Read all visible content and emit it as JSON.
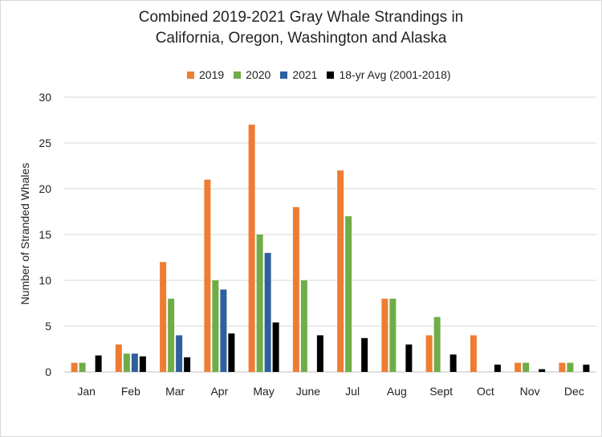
{
  "chart_data": {
    "type": "bar",
    "title_line1": "Combined 2019-2021 Gray Whale Strandings in",
    "title_line2": "California, Oregon, Washington and Alaska",
    "ylabel": "Number of Stranded Whales",
    "xlabel": "",
    "ylim": [
      0,
      30
    ],
    "yticks": [
      0,
      5,
      10,
      15,
      20,
      25,
      30
    ],
    "grid": true,
    "legend_position": "top",
    "categories": [
      "Jan",
      "Feb",
      "Mar",
      "Apr",
      "May",
      "June",
      "Jul",
      "Aug",
      "Sept",
      "Oct",
      "Nov",
      "Dec"
    ],
    "series": [
      {
        "name": "2019",
        "color": "#ED7D31",
        "values": [
          1,
          3,
          12,
          21,
          27,
          18,
          22,
          8,
          4,
          4,
          1,
          1
        ]
      },
      {
        "name": "2020",
        "color": "#70AD47",
        "values": [
          1,
          2,
          8,
          10,
          15,
          10,
          17,
          8,
          6,
          null,
          1,
          1
        ]
      },
      {
        "name": "2021",
        "color": "#2E5F9E",
        "values": [
          null,
          2,
          4,
          9,
          13,
          null,
          null,
          null,
          null,
          null,
          null,
          null
        ]
      },
      {
        "name": "18-yr Avg (2001-2018)",
        "color": "#000000",
        "values": [
          1.8,
          1.7,
          1.6,
          4.2,
          5.4,
          4.0,
          3.7,
          3.0,
          1.9,
          0.8,
          0.3,
          0.8
        ]
      }
    ]
  }
}
